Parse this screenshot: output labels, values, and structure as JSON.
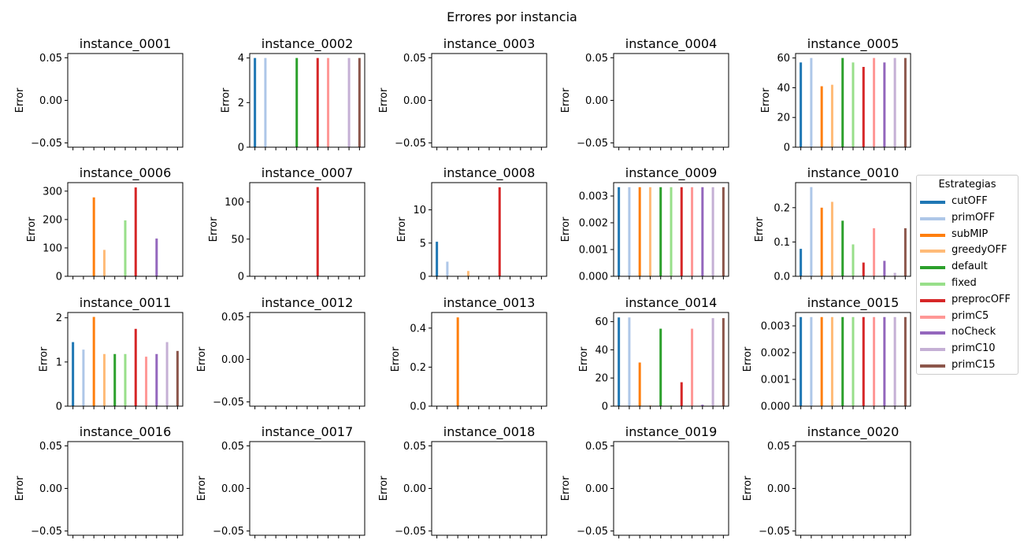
{
  "chart_data": {
    "type": "bar",
    "title": "Errores por instancia",
    "legend": {
      "title": "Estrategias",
      "placement": "right",
      "entries": [
        {
          "name": "cutOFF",
          "color": "#1f77b4"
        },
        {
          "name": "primOFF",
          "color": "#aec7e8"
        },
        {
          "name": "subMIP",
          "color": "#ff7f0e"
        },
        {
          "name": "greedyOFF",
          "color": "#ffbb78"
        },
        {
          "name": "default",
          "color": "#2ca02c"
        },
        {
          "name": "fixed",
          "color": "#98df8a"
        },
        {
          "name": "preprocOFF",
          "color": "#d62728"
        },
        {
          "name": "primC5",
          "color": "#ff9896"
        },
        {
          "name": "noCheck",
          "color": "#9467bd"
        },
        {
          "name": "primC10",
          "color": "#c5b0d5"
        },
        {
          "name": "primC15",
          "color": "#8c564b"
        }
      ]
    },
    "panels": [
      {
        "title": "instance_0001",
        "ylabel": "Error",
        "ylim": [
          -0.055,
          0.055
        ],
        "yticks": [
          -0.05,
          0,
          0.05
        ],
        "ytick_labels": [
          "−0.05",
          "0.00",
          "0.05"
        ],
        "values": [
          0,
          0,
          0,
          0,
          0,
          0,
          0,
          0,
          0,
          0,
          0
        ]
      },
      {
        "title": "instance_0002",
        "ylabel": "Error",
        "ylim": [
          0,
          4.2
        ],
        "yticks": [
          0,
          2,
          4
        ],
        "ytick_labels": [
          "0",
          "2",
          "4"
        ],
        "values": [
          4,
          4,
          0,
          0,
          4,
          0,
          4,
          4,
          0,
          4,
          4
        ]
      },
      {
        "title": "instance_0003",
        "ylabel": "Error",
        "ylim": [
          -0.055,
          0.055
        ],
        "yticks": [
          -0.05,
          0,
          0.05
        ],
        "ytick_labels": [
          "−0.05",
          "0.00",
          "0.05"
        ],
        "values": [
          0,
          0,
          0,
          0,
          0,
          0,
          0,
          0,
          0,
          0,
          0
        ]
      },
      {
        "title": "instance_0004",
        "ylabel": "Error",
        "ylim": [
          -0.055,
          0.055
        ],
        "yticks": [
          -0.05,
          0,
          0.05
        ],
        "ytick_labels": [
          "−0.05",
          "0.00",
          "0.05"
        ],
        "values": [
          0,
          0,
          0,
          0,
          0,
          0,
          0,
          0,
          0,
          0,
          0
        ]
      },
      {
        "title": "instance_0005",
        "ylabel": "Error",
        "ylim": [
          0,
          63
        ],
        "yticks": [
          0,
          20,
          40,
          60
        ],
        "ytick_labels": [
          "0",
          "20",
          "40",
          "60"
        ],
        "values": [
          57,
          60,
          41,
          42,
          60,
          57,
          54,
          60,
          57,
          60,
          60
        ]
      },
      {
        "title": "instance_0006",
        "ylabel": "Error",
        "ylim": [
          0,
          330
        ],
        "yticks": [
          0,
          100,
          200,
          300
        ],
        "ytick_labels": [
          "0",
          "100",
          "200",
          "300"
        ],
        "values": [
          0,
          0,
          278,
          93,
          0,
          197,
          313,
          0,
          133,
          0,
          0
        ]
      },
      {
        "title": "instance_0007",
        "ylabel": "Error",
        "ylim": [
          0,
          126
        ],
        "yticks": [
          0,
          50,
          100
        ],
        "ytick_labels": [
          "0",
          "50",
          "100"
        ],
        "values": [
          0,
          0,
          0,
          0,
          0,
          0,
          120,
          0,
          0,
          0,
          0
        ]
      },
      {
        "title": "instance_0008",
        "ylabel": "Error",
        "ylim": [
          0,
          14.1
        ],
        "yticks": [
          0,
          5,
          10
        ],
        "ytick_labels": [
          "0",
          "5",
          "10"
        ],
        "values": [
          5.2,
          2.2,
          0,
          0.8,
          0,
          0,
          13.4,
          0,
          0,
          0,
          0
        ]
      },
      {
        "title": "instance_0009",
        "ylabel": "Error",
        "ylim": [
          0,
          0.0035
        ],
        "yticks": [
          0,
          0.001,
          0.002,
          0.003
        ],
        "ytick_labels": [
          "0.000",
          "0.001",
          "0.002",
          "0.003"
        ],
        "values": [
          0.00333,
          0.00333,
          0.00333,
          0.00333,
          0.00333,
          0.00333,
          0.00333,
          0.00333,
          0.00333,
          0.00333,
          0.00333
        ]
      },
      {
        "title": "instance_0010",
        "ylabel": "Error",
        "ylim": [
          0,
          0.273
        ],
        "yticks": [
          0,
          0.1,
          0.2
        ],
        "ytick_labels": [
          "0.0",
          "0.1",
          "0.2"
        ],
        "values": [
          0.08,
          0.26,
          0.2,
          0.217,
          0.162,
          0.093,
          0.04,
          0.14,
          0.045,
          0.01,
          0.14
        ]
      },
      {
        "title": "instance_0011",
        "ylabel": "Error",
        "ylim": [
          0,
          2.12
        ],
        "yticks": [
          0,
          1,
          2
        ],
        "ytick_labels": [
          "0",
          "1",
          "2"
        ],
        "values": [
          1.45,
          1.28,
          2.02,
          1.18,
          1.18,
          1.18,
          1.75,
          1.12,
          1.18,
          1.45,
          1.25
        ]
      },
      {
        "title": "instance_0012",
        "ylabel": "Error",
        "ylim": [
          -0.055,
          0.055
        ],
        "yticks": [
          -0.05,
          0,
          0.05
        ],
        "ytick_labels": [
          "−0.05",
          "0.00",
          "0.05"
        ],
        "values": [
          0,
          0,
          0,
          0,
          0,
          0,
          0,
          0,
          0,
          0,
          0
        ]
      },
      {
        "title": "instance_0013",
        "ylabel": "Error",
        "ylim": [
          0,
          0.48
        ],
        "yticks": [
          0,
          0.2,
          0.4
        ],
        "ytick_labels": [
          "0.0",
          "0.2",
          "0.4"
        ],
        "values": [
          0,
          0,
          0.455,
          0,
          0,
          0,
          0,
          0,
          0,
          0,
          0
        ]
      },
      {
        "title": "instance_0014",
        "ylabel": "Error",
        "ylim": [
          0,
          66.5
        ],
        "yticks": [
          0,
          20,
          40,
          60
        ],
        "ytick_labels": [
          "0",
          "20",
          "40",
          "60"
        ],
        "values": [
          63,
          63,
          31,
          0.5,
          55,
          0.5,
          17,
          55,
          1,
          62.5,
          62.5
        ]
      },
      {
        "title": "instance_0015",
        "ylabel": "Error",
        "ylim": [
          0,
          0.0035
        ],
        "yticks": [
          0,
          0.001,
          0.002,
          0.003
        ],
        "ytick_labels": [
          "0.000",
          "0.001",
          "0.002",
          "0.003"
        ],
        "values": [
          0.00333,
          0.00333,
          0.00333,
          0.00333,
          0.00333,
          0.00333,
          0.00333,
          0.00333,
          0.00333,
          0.00333,
          0.00333
        ]
      },
      {
        "title": "instance_0016",
        "ylabel": "Error",
        "ylim": [
          -0.055,
          0.055
        ],
        "yticks": [
          -0.05,
          0,
          0.05
        ],
        "ytick_labels": [
          "−0.05",
          "0.00",
          "0.05"
        ],
        "values": [
          0,
          0,
          0,
          0,
          0,
          0,
          0,
          0,
          0,
          0,
          0
        ]
      },
      {
        "title": "instance_0017",
        "ylabel": "Error",
        "ylim": [
          -0.055,
          0.055
        ],
        "yticks": [
          -0.05,
          0,
          0.05
        ],
        "ytick_labels": [
          "−0.05",
          "0.00",
          "0.05"
        ],
        "values": [
          0,
          0,
          0,
          0,
          0,
          0,
          0,
          0,
          0,
          0,
          0
        ]
      },
      {
        "title": "instance_0018",
        "ylabel": "Error",
        "ylim": [
          -0.055,
          0.055
        ],
        "yticks": [
          -0.05,
          0,
          0.05
        ],
        "ytick_labels": [
          "−0.05",
          "0.00",
          "0.05"
        ],
        "values": [
          0,
          0,
          0,
          0,
          0,
          0,
          0,
          0,
          0,
          0,
          0
        ]
      },
      {
        "title": "instance_0019",
        "ylabel": "Error",
        "ylim": [
          -0.055,
          0.055
        ],
        "yticks": [
          -0.05,
          0,
          0.05
        ],
        "ytick_labels": [
          "−0.05",
          "0.00",
          "0.05"
        ],
        "values": [
          0,
          0,
          0,
          0,
          0,
          0,
          0,
          0,
          0,
          0,
          0
        ]
      },
      {
        "title": "instance_0020",
        "ylabel": "Error",
        "ylim": [
          -0.055,
          0.055
        ],
        "yticks": [
          -0.05,
          0,
          0.05
        ],
        "ytick_labels": [
          "−0.05",
          "0.00",
          "0.05"
        ],
        "values": [
          0,
          0,
          0,
          0,
          0,
          0,
          0,
          0,
          0,
          0,
          0
        ]
      }
    ]
  }
}
